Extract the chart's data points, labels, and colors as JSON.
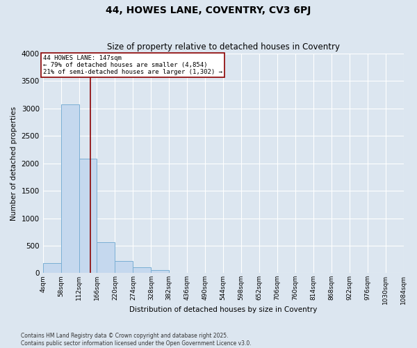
{
  "title1": "44, HOWES LANE, COVENTRY, CV3 6PJ",
  "title2": "Size of property relative to detached houses in Coventry",
  "xlabel": "Distribution of detached houses by size in Coventry",
  "ylabel": "Number of detached properties",
  "bins": [
    4,
    58,
    112,
    166,
    220,
    274,
    328,
    382,
    436,
    490,
    544,
    598,
    652,
    706,
    760,
    814,
    868,
    922,
    976,
    1030,
    1084
  ],
  "counts": [
    180,
    3080,
    2080,
    560,
    220,
    100,
    50,
    0,
    0,
    0,
    0,
    0,
    0,
    0,
    0,
    0,
    0,
    0,
    0,
    0
  ],
  "bar_color": "#c5d8ee",
  "bar_edge_color": "#7aafd4",
  "vline_x": 147,
  "vline_color": "#8b0000",
  "annotation_title": "44 HOWES LANE: 147sqm",
  "annotation_line1": "← 79% of detached houses are smaller (4,854)",
  "annotation_line2": "21% of semi-detached houses are larger (1,302) →",
  "annotation_box_color": "#8b0000",
  "ylim": [
    0,
    4000
  ],
  "yticks": [
    0,
    500,
    1000,
    1500,
    2000,
    2500,
    3000,
    3500,
    4000
  ],
  "footer1": "Contains HM Land Registry data © Crown copyright and database right 2025.",
  "footer2": "Contains public sector information licensed under the Open Government Licence v3.0.",
  "bg_color": "#dce6f0",
  "plot_bg_color": "#dce6f0"
}
